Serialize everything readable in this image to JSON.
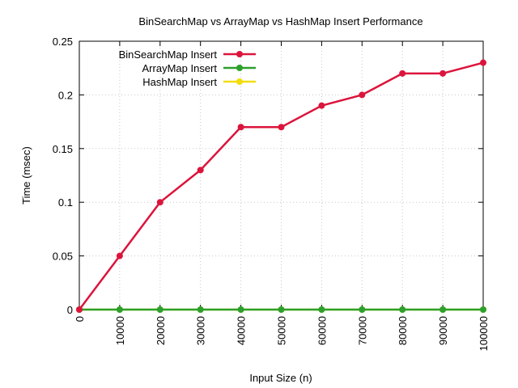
{
  "chart_data": {
    "type": "line",
    "title": "BinSearchMap vs ArrayMap vs HashMap Insert Performance",
    "xlabel": "Input Size (n)",
    "ylabel": "Time (msec)",
    "xlim": [
      0,
      100000
    ],
    "ylim": [
      0,
      0.25
    ],
    "grid": true,
    "legend_position": "top-left",
    "x_ticks": [
      "0",
      "10000",
      "20000",
      "30000",
      "40000",
      "50000",
      "60000",
      "70000",
      "80000",
      "90000",
      "100000"
    ],
    "y_ticks": [
      "0",
      "0.05",
      "0.1",
      "0.15",
      "0.2",
      "0.25"
    ],
    "x": [
      0,
      10000,
      20000,
      30000,
      40000,
      50000,
      60000,
      70000,
      80000,
      90000,
      100000
    ],
    "series": [
      {
        "name": "BinSearchMap Insert",
        "color": "#dc143c",
        "values": [
          0,
          0.05,
          0.1,
          0.13,
          0.17,
          0.17,
          0.19,
          0.2,
          0.22,
          0.22,
          0.23
        ]
      },
      {
        "name": "ArrayMap Insert",
        "color": "#2ca02c",
        "values": [
          0,
          0,
          0,
          0,
          0,
          0,
          0,
          0,
          0,
          0,
          0
        ]
      },
      {
        "name": "HashMap Insert",
        "color": "#f2dd0c",
        "values": [
          0,
          0,
          0,
          0,
          0,
          0,
          0,
          0,
          0,
          0,
          0
        ]
      }
    ]
  }
}
